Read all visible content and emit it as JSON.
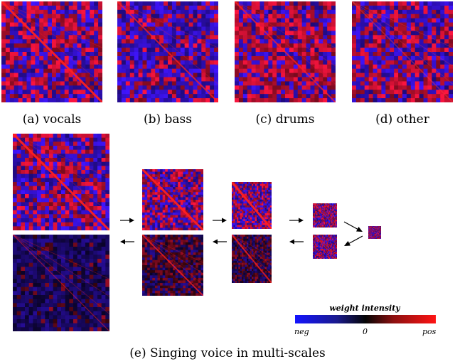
{
  "captions": {
    "vocals": "(a) vocals",
    "bass": "(b) bass",
    "drums": "(c) drums",
    "other": "(d) other",
    "multiscale": "(e) Singing voice in multi-scales"
  },
  "legend": {
    "title": "weight intensity",
    "neg": "neg",
    "zero": "0",
    "pos": "pos",
    "colors": {
      "neg": "#1414ff",
      "zero": "#050505",
      "pos": "#ff1414"
    }
  },
  "heatmaps": {
    "vocals": {
      "red_fraction": 0.5,
      "diagonal": "strong",
      "diagonal_color": "#ff2020"
    },
    "bass": {
      "red_fraction": 0.35,
      "diagonal": "medium",
      "diagonal_color": "#ff2020"
    },
    "drums": {
      "red_fraction": 0.65,
      "diagonal": "medium",
      "diagonal_color": "#ff2020"
    },
    "other": {
      "red_fraction": 0.5,
      "diagonal": "faint",
      "diagonal_color": "#ff4040"
    },
    "scale1_top": {
      "red_fraction": 0.5,
      "diagonal": "strong",
      "diagonal_color": "#ff2020"
    },
    "scale1_bottom": {
      "red_fraction": 0.1,
      "diagonal": "faint",
      "diagonal_color": "#ff2020",
      "dark": true
    },
    "scale2_top": {
      "red_fraction": 0.5,
      "diagonal": "strong",
      "diagonal_color": "#ff2020"
    },
    "scale2_bottom": {
      "red_fraction": 0.55,
      "diagonal": "medium",
      "diagonal_color": "#ff2020",
      "dark": true
    },
    "scale3_top": {
      "red_fraction": 0.45,
      "diagonal": "strong",
      "diagonal_color": "#ff2020"
    },
    "scale3_bottom": {
      "red_fraction": 0.5,
      "diagonal": "medium",
      "diagonal_color": "#ff2020",
      "dark": true
    },
    "scale4_top": {
      "red_fraction": 0.5,
      "diagonal": "faint",
      "diagonal_color": "#ff2020"
    },
    "scale4_bottom": {
      "red_fraction": 0.5,
      "diagonal": "faint",
      "diagonal_color": "#ff2020"
    },
    "scale5": {
      "red_fraction": 0.5,
      "diagonal": "none",
      "diagonal_color": "#ff2020"
    }
  }
}
